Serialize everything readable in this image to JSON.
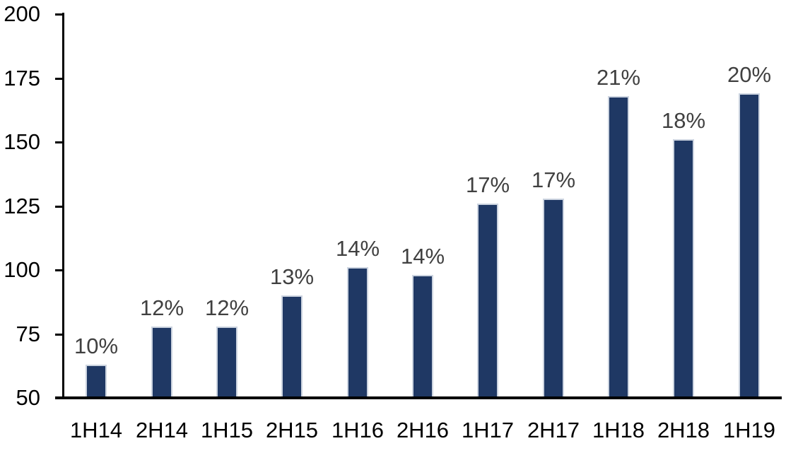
{
  "chart_data": {
    "type": "bar",
    "categories": [
      "1H14",
      "2H14",
      "1H15",
      "2H15",
      "1H16",
      "2H16",
      "1H17",
      "2H17",
      "1H18",
      "2H18",
      "1H19"
    ],
    "values": [
      63,
      78,
      78,
      90,
      101,
      98,
      126,
      128,
      168,
      151,
      169
    ],
    "bar_labels": [
      "10%",
      "12%",
      "12%",
      "13%",
      "14%",
      "14%",
      "17%",
      "17%",
      "21%",
      "18%",
      "20%"
    ],
    "ylim": [
      50,
      200
    ],
    "yticks": [
      50,
      75,
      100,
      125,
      150,
      175,
      200
    ],
    "grid": false,
    "legend": false,
    "layout": {
      "bar_color_name": "navy-bar",
      "legend_position": "none"
    },
    "colors": {
      "bar_fill": "#1f3864",
      "bar_border": "#ccd4e0",
      "data_label": "#404040",
      "axis": "#000000",
      "background": "#ffffff"
    }
  }
}
